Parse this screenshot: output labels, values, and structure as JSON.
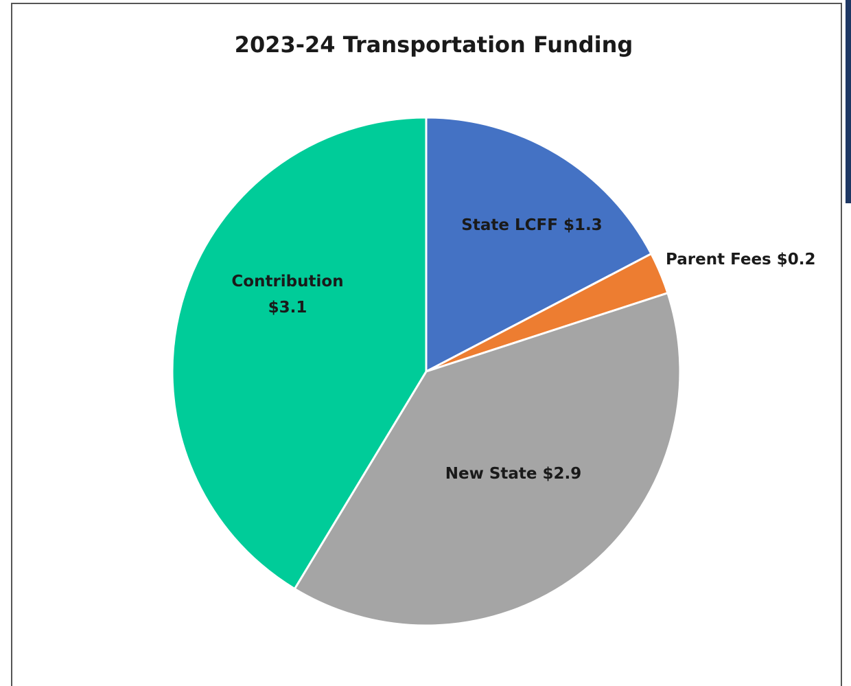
{
  "chart_data": {
    "type": "pie",
    "title": "2023-24 Transportation Funding",
    "categories": [
      "State LCFF",
      "Parent Fees",
      "New State",
      "Contribution"
    ],
    "values": [
      1.3,
      0.2,
      2.9,
      3.1
    ],
    "value_labels": [
      "$1.3",
      "$0.2",
      "$2.9",
      "$3.1"
    ],
    "colors": [
      "#4472c4",
      "#ed7d31",
      "#a5a5a5",
      "#00cc99"
    ]
  }
}
